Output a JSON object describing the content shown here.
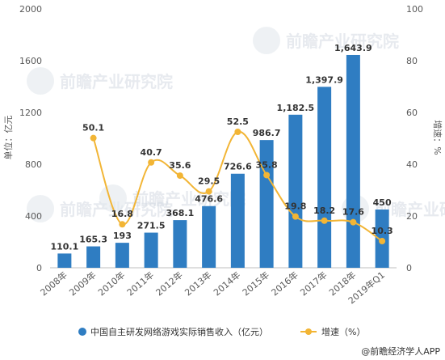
{
  "chart_data": {
    "type": "bar+line",
    "categories": [
      "2008年",
      "2009年",
      "2010年",
      "2011年",
      "2012年",
      "2013年",
      "2014年",
      "2015年",
      "2016年",
      "2017年",
      "2018年",
      "2019年Q1"
    ],
    "series": [
      {
        "name": "中国自主研发网络游戏实际销售收入（亿元）",
        "type": "bar",
        "axis": "left",
        "color": "#2f7dc2",
        "values": [
          110.1,
          165.3,
          193,
          271.5,
          368.1,
          476.6,
          726.6,
          986.7,
          1182.5,
          1397.9,
          1643.9,
          450
        ],
        "labels": [
          "110.1",
          "165.3",
          "193",
          "271.5",
          "368.1",
          "476.6",
          "726.6",
          "986.7",
          "1,182.5",
          "1,397.9",
          "1,643.9",
          "450"
        ]
      },
      {
        "name": "增速（%）",
        "type": "line",
        "axis": "right",
        "color": "#f2b535",
        "x": [
          "2009年",
          "2010年",
          "2011年",
          "2012年",
          "2013年",
          "2014年",
          "2015年",
          "2016年",
          "2017年",
          "2018年",
          "2019年Q1"
        ],
        "values": [
          50.1,
          16.8,
          40.7,
          35.6,
          29.5,
          52.5,
          35.8,
          19.8,
          18.2,
          17.6,
          10.3
        ],
        "labels": [
          "50.1",
          "16.8",
          "40.7",
          "35.6",
          "29.5",
          "52.5",
          "35.8",
          "19.8",
          "18.2",
          "17.6",
          "10.3"
        ]
      }
    ],
    "ylabel_left": "单位：亿元",
    "ylabel_right": "增速：%",
    "ylim_left": [
      0,
      2000
    ],
    "yticks_left": [
      "0",
      "400",
      "800",
      "1200",
      "1600",
      "2000"
    ],
    "ylim_right": [
      0,
      100
    ],
    "yticks_right": [
      "0",
      "20",
      "40",
      "60",
      "80",
      "100"
    ],
    "grid": false,
    "legend_position": "bottom"
  },
  "watermark": "前瞻产业研究院",
  "source": "@前瞻经济学人APP"
}
